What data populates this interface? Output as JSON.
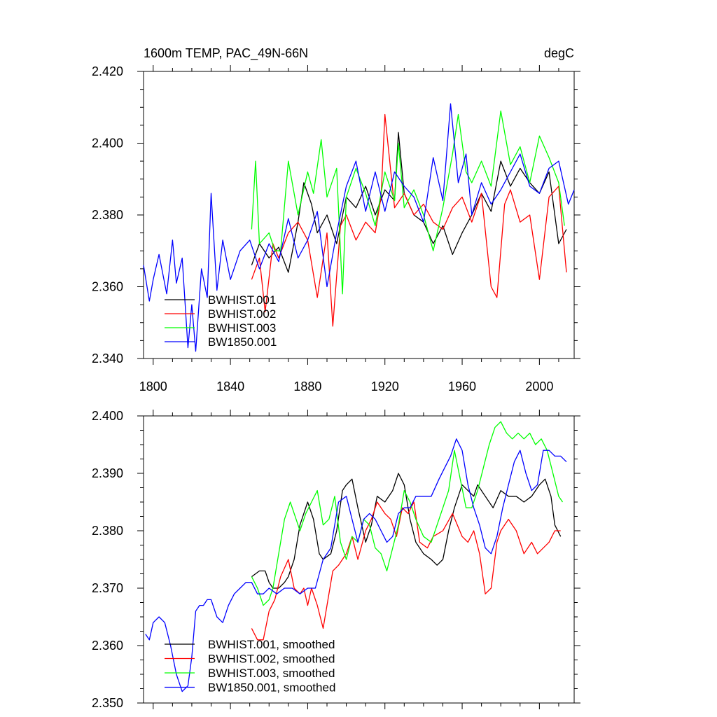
{
  "chart_data": [
    {
      "type": "line",
      "title": "1600m TEMP, PAC_49N-66N",
      "units": "degC",
      "xlim": [
        1795,
        2018
      ],
      "ylim": [
        2.34,
        2.42
      ],
      "xticks": [
        1800,
        1840,
        1880,
        1920,
        1960,
        2000
      ],
      "xtick_labels": [
        "1800",
        "1840",
        "1880",
        "1920",
        "1960",
        "2000"
      ],
      "yticks": [
        2.34,
        2.36,
        2.38,
        2.4,
        2.42
      ],
      "ytick_labels": [
        "2.340",
        "2.360",
        "2.380",
        "2.400",
        "2.420"
      ],
      "series": [
        {
          "name": "BWHIST.001",
          "color": "#000000",
          "x": [
            1851,
            1855,
            1860,
            1865,
            1870,
            1875,
            1878,
            1882,
            1885,
            1890,
            1895,
            1900,
            1905,
            1910,
            1915,
            1920,
            1925,
            1927,
            1930,
            1935,
            1940,
            1945,
            1950,
            1955,
            1960,
            1965,
            1970,
            1975,
            1980,
            1985,
            1990,
            1995,
            2000,
            2005,
            2010,
            2014
          ],
          "y": [
            2.366,
            2.372,
            2.368,
            2.371,
            2.364,
            2.378,
            2.389,
            2.383,
            2.375,
            2.38,
            2.372,
            2.385,
            2.382,
            2.388,
            2.38,
            2.387,
            2.384,
            2.403,
            2.386,
            2.38,
            2.378,
            2.372,
            2.377,
            2.369,
            2.375,
            2.38,
            2.386,
            2.381,
            2.395,
            2.388,
            2.393,
            2.389,
            2.386,
            2.392,
            2.372,
            2.376
          ]
        },
        {
          "name": "BWHIST.002",
          "color": "#ff0000",
          "x": [
            1851,
            1855,
            1858,
            1862,
            1865,
            1870,
            1875,
            1880,
            1885,
            1890,
            1893,
            1897,
            1900,
            1905,
            1910,
            1915,
            1918,
            1920,
            1925,
            1930,
            1935,
            1940,
            1945,
            1950,
            1955,
            1960,
            1965,
            1970,
            1975,
            1978,
            1982,
            1985,
            1990,
            1995,
            2000,
            2005,
            2010,
            2014
          ],
          "y": [
            2.362,
            2.368,
            2.353,
            2.372,
            2.368,
            2.375,
            2.378,
            2.373,
            2.357,
            2.375,
            2.349,
            2.377,
            2.38,
            2.373,
            2.378,
            2.375,
            2.385,
            2.408,
            2.382,
            2.386,
            2.38,
            2.383,
            2.378,
            2.376,
            2.382,
            2.385,
            2.378,
            2.386,
            2.36,
            2.357,
            2.383,
            2.387,
            2.378,
            2.38,
            2.362,
            2.385,
            2.388,
            2.364
          ]
        },
        {
          "name": "BWHIST.003",
          "color": "#00ff00",
          "x": [
            1851,
            1853,
            1855,
            1860,
            1863,
            1866,
            1870,
            1875,
            1880,
            1883,
            1887,
            1890,
            1895,
            1898,
            1900,
            1905,
            1910,
            1915,
            1920,
            1925,
            1927,
            1930,
            1935,
            1940,
            1945,
            1950,
            1955,
            1958,
            1962,
            1965,
            1970,
            1975,
            1980,
            1985,
            1990,
            1995,
            2000,
            2005,
            2010,
            2013
          ],
          "y": [
            2.376,
            2.395,
            2.372,
            2.375,
            2.37,
            2.37,
            2.395,
            2.38,
            2.392,
            2.386,
            2.401,
            2.385,
            2.393,
            2.358,
            2.385,
            2.393,
            2.386,
            2.377,
            2.392,
            2.384,
            2.4,
            2.382,
            2.387,
            2.38,
            2.37,
            2.382,
            2.397,
            2.408,
            2.392,
            2.389,
            2.395,
            2.388,
            2.409,
            2.394,
            2.399,
            2.389,
            2.402,
            2.396,
            2.389,
            2.377
          ]
        },
        {
          "name": "BW1850.001",
          "color": "#0000ff",
          "x": [
            1795,
            1798,
            1800,
            1803,
            1807,
            1810,
            1812,
            1815,
            1818,
            1820,
            1822,
            1825,
            1828,
            1830,
            1833,
            1836,
            1840,
            1845,
            1850,
            1855,
            1860,
            1865,
            1870,
            1875,
            1880,
            1885,
            1890,
            1895,
            1900,
            1905,
            1910,
            1915,
            1920,
            1925,
            1930,
            1935,
            1940,
            1945,
            1950,
            1954,
            1958,
            1962,
            1965,
            1970,
            1975,
            1980,
            1985,
            1990,
            1995,
            2000,
            2005,
            2010,
            2015,
            2018
          ],
          "y": [
            2.366,
            2.356,
            2.362,
            2.369,
            2.358,
            2.373,
            2.361,
            2.368,
            2.343,
            2.355,
            2.342,
            2.365,
            2.357,
            2.386,
            2.359,
            2.373,
            2.362,
            2.37,
            2.373,
            2.365,
            2.372,
            2.367,
            2.379,
            2.368,
            2.373,
            2.381,
            2.36,
            2.375,
            2.388,
            2.395,
            2.381,
            2.392,
            2.381,
            2.392,
            2.388,
            2.385,
            2.378,
            2.396,
            2.384,
            2.411,
            2.389,
            2.397,
            2.38,
            2.389,
            2.383,
            2.387,
            2.392,
            2.397,
            2.388,
            2.386,
            2.393,
            2.395,
            2.383,
            2.387
          ]
        }
      ],
      "legend": {
        "position": "bottom-left",
        "entries": [
          "BWHIST.001",
          "BWHIST.002",
          "BWHIST.003",
          "BW1850.001"
        ]
      }
    },
    {
      "type": "line",
      "title": "",
      "xlim": [
        1795,
        2018
      ],
      "ylim": [
        2.35,
        2.4
      ],
      "xticks": [
        1800,
        1840,
        1880,
        1920,
        1960,
        2000
      ],
      "yticks": [
        2.35,
        2.36,
        2.37,
        2.38,
        2.39,
        2.4
      ],
      "ytick_labels": [
        "2.350",
        "2.360",
        "2.370",
        "2.380",
        "2.390",
        "2.400"
      ],
      "series": [
        {
          "name": "BWHIST.001, smoothed",
          "color": "#000000",
          "x": [
            1851,
            1855,
            1858,
            1860,
            1862,
            1865,
            1868,
            1870,
            1873,
            1876,
            1880,
            1883,
            1886,
            1888,
            1892,
            1895,
            1898,
            1900,
            1903,
            1906,
            1910,
            1913,
            1916,
            1920,
            1924,
            1927,
            1930,
            1933,
            1936,
            1940,
            1944,
            1947,
            1950,
            1953,
            1956,
            1960,
            1963,
            1966,
            1968,
            1972,
            1976,
            1980,
            1984,
            1988,
            1992,
            1996,
            2000,
            2003,
            2006,
            2008,
            2011
          ],
          "y": [
            2.372,
            2.373,
            2.373,
            2.371,
            2.37,
            2.37,
            2.371,
            2.372,
            2.375,
            2.381,
            2.385,
            2.382,
            2.376,
            2.375,
            2.376,
            2.38,
            2.387,
            2.388,
            2.389,
            2.384,
            2.378,
            2.381,
            2.386,
            2.385,
            2.387,
            2.39,
            2.388,
            2.382,
            2.378,
            2.376,
            2.375,
            2.374,
            2.375,
            2.38,
            2.384,
            2.388,
            2.387,
            2.386,
            2.388,
            2.386,
            2.384,
            2.387,
            2.386,
            2.386,
            2.385,
            2.386,
            2.388,
            2.389,
            2.386,
            2.381,
            2.379
          ]
        },
        {
          "name": "BWHIST.002, smoothed",
          "color": "#ff0000",
          "x": [
            1851,
            1854,
            1857,
            1860,
            1863,
            1866,
            1870,
            1873,
            1876,
            1878,
            1880,
            1882,
            1885,
            1888,
            1890,
            1893,
            1896,
            1900,
            1903,
            1906,
            1910,
            1913,
            1916,
            1920,
            1923,
            1926,
            1929,
            1932,
            1935,
            1938,
            1942,
            1945,
            1950,
            1955,
            1960,
            1963,
            1966,
            1969,
            1972,
            1975,
            1978,
            1980,
            1984,
            1988,
            1992,
            1996,
            1999,
            2002,
            2005,
            2008,
            2011
          ],
          "y": [
            2.363,
            2.361,
            2.361,
            2.366,
            2.368,
            2.372,
            2.375,
            2.37,
            2.369,
            2.37,
            2.367,
            2.37,
            2.367,
            2.363,
            2.367,
            2.373,
            2.374,
            2.376,
            2.379,
            2.375,
            2.38,
            2.382,
            2.385,
            2.383,
            2.382,
            2.379,
            2.384,
            2.383,
            2.385,
            2.378,
            2.377,
            2.379,
            2.38,
            2.383,
            2.379,
            2.378,
            2.38,
            2.376,
            2.369,
            2.37,
            2.378,
            2.38,
            2.382,
            2.38,
            2.376,
            2.378,
            2.376,
            2.377,
            2.378,
            2.38,
            2.38
          ]
        },
        {
          "name": "BWHIST.003, smoothed",
          "color": "#00ff00",
          "x": [
            1851,
            1854,
            1857,
            1860,
            1862,
            1865,
            1868,
            1871,
            1874,
            1876,
            1879,
            1882,
            1885,
            1888,
            1891,
            1894,
            1897,
            1900,
            1903,
            1906,
            1909,
            1912,
            1915,
            1918,
            1921,
            1924,
            1927,
            1930,
            1933,
            1936,
            1940,
            1944,
            1947,
            1950,
            1953,
            1956,
            1959,
            1962,
            1965,
            1968,
            1971,
            1974,
            1977,
            1980,
            1983,
            1986,
            1989,
            1992,
            1995,
            1998,
            2001,
            2004,
            2007,
            2010,
            2012
          ],
          "y": [
            2.372,
            2.37,
            2.367,
            2.368,
            2.37,
            2.376,
            2.382,
            2.385,
            2.382,
            2.38,
            2.383,
            2.385,
            2.387,
            2.381,
            2.382,
            2.386,
            2.378,
            2.375,
            2.379,
            2.378,
            2.382,
            2.381,
            2.377,
            2.376,
            2.373,
            2.377,
            2.381,
            2.387,
            2.385,
            2.382,
            2.379,
            2.378,
            2.381,
            2.384,
            2.387,
            2.394,
            2.389,
            2.384,
            2.384,
            2.387,
            2.391,
            2.395,
            2.398,
            2.399,
            2.397,
            2.396,
            2.397,
            2.396,
            2.397,
            2.395,
            2.396,
            2.394,
            2.39,
            2.386,
            2.385
          ]
        },
        {
          "name": "BW1850.001, smoothed",
          "color": "#0000ff",
          "x": [
            1796,
            1798,
            1800,
            1803,
            1806,
            1809,
            1812,
            1815,
            1818,
            1820,
            1822,
            1824,
            1826,
            1828,
            1830,
            1833,
            1836,
            1839,
            1842,
            1845,
            1848,
            1851,
            1854,
            1857,
            1860,
            1864,
            1868,
            1872,
            1876,
            1880,
            1884,
            1888,
            1892,
            1896,
            1900,
            1903,
            1906,
            1909,
            1912,
            1915,
            1918,
            1921,
            1924,
            1927,
            1930,
            1933,
            1936,
            1940,
            1944,
            1948,
            1951,
            1954,
            1957,
            1960,
            1963,
            1966,
            1969,
            1972,
            1975,
            1978,
            1981,
            1984,
            1987,
            1990,
            1993,
            1996,
            1999,
            2002,
            2005,
            2008,
            2011,
            2014
          ],
          "y": [
            2.362,
            2.361,
            2.364,
            2.365,
            2.364,
            2.36,
            2.355,
            2.352,
            2.353,
            2.358,
            2.366,
            2.367,
            2.367,
            2.368,
            2.368,
            2.365,
            2.364,
            2.367,
            2.369,
            2.37,
            2.371,
            2.371,
            2.369,
            2.369,
            2.37,
            2.369,
            2.37,
            2.37,
            2.369,
            2.37,
            2.37,
            2.375,
            2.377,
            2.385,
            2.386,
            2.382,
            2.378,
            2.382,
            2.383,
            2.382,
            2.38,
            2.378,
            2.379,
            2.383,
            2.384,
            2.384,
            2.386,
            2.386,
            2.386,
            2.389,
            2.391,
            2.393,
            2.396,
            2.394,
            2.388,
            2.384,
            2.381,
            2.377,
            2.376,
            2.379,
            2.384,
            2.388,
            2.392,
            2.394,
            2.39,
            2.387,
            2.388,
            2.394,
            2.394,
            2.393,
            2.393,
            2.392
          ]
        }
      ],
      "legend": {
        "position": "bottom-left",
        "entries": [
          "BWHIST.001, smoothed",
          "BWHIST.002, smoothed",
          "BWHIST.003, smoothed",
          "BW1850.001, smoothed"
        ]
      }
    }
  ]
}
